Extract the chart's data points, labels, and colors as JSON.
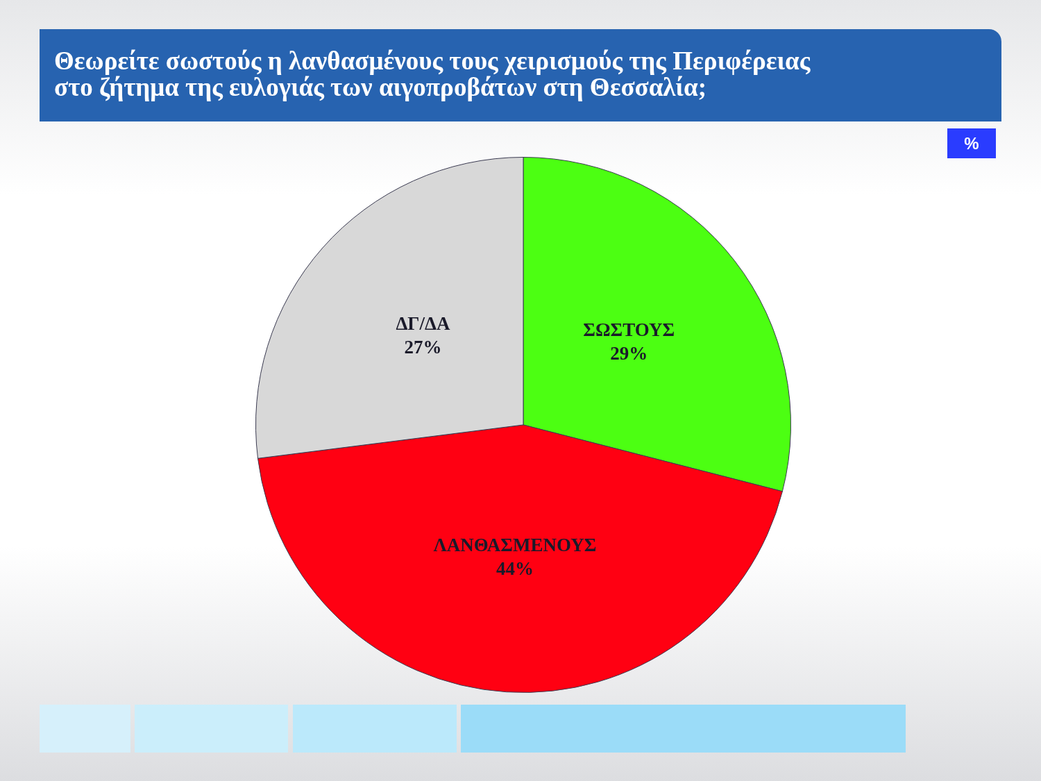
{
  "chart_data": {
    "type": "pie",
    "title": "Θεωρείτε σωστούς η λανθασμένους τους χειρισμούς της Περιφέρειας στο ζήτημα της ευλογιάς των αιγοπροβάτων στη Θεσσαλία;",
    "categories": [
      "ΣΩΣΤΟΥΣ",
      "ΛΑΝΘΑΣΜΕΝΟΥΣ",
      "ΔΓ/ΔΑ"
    ],
    "values": [
      29,
      44,
      27
    ],
    "colors": [
      "#4cff12",
      "#ff0012",
      "#d8d8d8"
    ],
    "value_labels": [
      "29%",
      "44%",
      "27%"
    ],
    "annotations": [
      "%"
    ]
  }
}
